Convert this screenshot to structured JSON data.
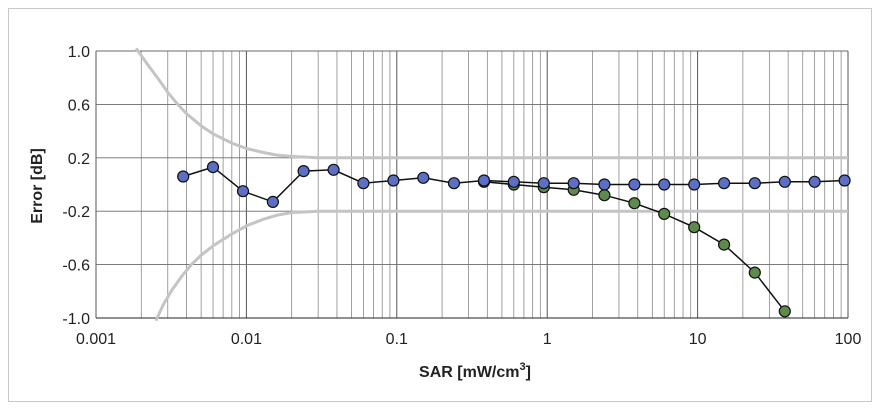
{
  "chart_data": {
    "type": "scatter",
    "title": "",
    "xlabel": "SAR [mW/cm",
    "xlabel_sup": "3",
    "xlabel_end": "]",
    "ylabel": "Error [dB]",
    "xscale": "log",
    "xlim": [
      0.001,
      100
    ],
    "ylim": [
      -1.0,
      1.0
    ],
    "x_ticks": [
      0.001,
      0.01,
      0.1,
      1,
      10,
      100
    ],
    "x_tick_labels": [
      "0.001",
      "0.01",
      "0.1",
      "1",
      "10",
      "100"
    ],
    "y_ticks": [
      1.0,
      0.6,
      0.2,
      -0.2,
      -0.6,
      -1.0
    ],
    "y_tick_labels": [
      "1.0",
      "0.6",
      "0.2",
      "-0.2",
      "-0.6",
      "-1.0"
    ],
    "grid": true,
    "legend": "none",
    "series": [
      {
        "color": "#5c6fc4",
        "x": [
          0.0038,
          0.006,
          0.0095,
          0.015,
          0.024,
          0.038,
          0.06,
          0.095,
          0.15,
          0.24,
          0.38,
          0.6,
          0.95,
          1.5,
          2.4,
          3.8,
          6.0,
          9.5,
          15,
          24,
          38,
          60,
          95
        ],
        "y": [
          0.06,
          0.13,
          -0.05,
          -0.13,
          0.1,
          0.11,
          0.01,
          0.03,
          0.05,
          0.01,
          0.03,
          0.02,
          0.01,
          0.01,
          0.0,
          0.0,
          0.0,
          0.0,
          0.01,
          0.01,
          0.02,
          0.02,
          0.03
        ]
      },
      {
        "color": "#5e8a4e",
        "x": [
          0.38,
          0.6,
          0.95,
          1.5,
          2.4,
          3.8,
          6.0,
          9.5,
          15,
          24,
          38
        ],
        "y": [
          0.02,
          0.0,
          -0.02,
          -0.04,
          -0.08,
          -0.14,
          -0.22,
          -0.32,
          -0.45,
          -0.66,
          -0.95
        ]
      }
    ],
    "envelope": {
      "color": "#c4c4c4",
      "upper": {
        "x": [
          0.00185,
          0.0022,
          0.0026,
          0.003,
          0.0035,
          0.004,
          0.005,
          0.006,
          0.008,
          0.01,
          0.013,
          0.016,
          0.02,
          0.025,
          0.03,
          100
        ],
        "y": [
          1.02,
          0.9,
          0.79,
          0.69,
          0.6,
          0.53,
          0.44,
          0.38,
          0.31,
          0.27,
          0.24,
          0.22,
          0.21,
          0.205,
          0.2,
          0.2
        ]
      },
      "lower": {
        "x": [
          0.0025,
          0.0028,
          0.0032,
          0.0037,
          0.0043,
          0.005,
          0.006,
          0.008,
          0.01,
          0.013,
          0.016,
          0.02,
          0.025,
          0.03,
          100
        ],
        "y": [
          -1.02,
          -0.9,
          -0.79,
          -0.69,
          -0.6,
          -0.53,
          -0.46,
          -0.37,
          -0.31,
          -0.26,
          -0.23,
          -0.21,
          -0.205,
          -0.2,
          -0.2
        ]
      }
    }
  }
}
